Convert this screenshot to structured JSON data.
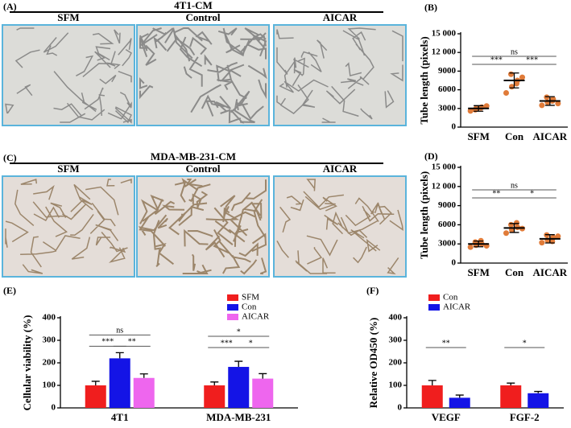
{
  "figure": {
    "panels": [
      {
        "label": "(A)",
        "title": "4T1-CM",
        "images": [
          "SFM",
          "Control",
          "AICAR"
        ]
      },
      {
        "label": "(C)",
        "title": "MDA-MB-231-CM",
        "images": [
          "SFM",
          "Control",
          "AICAR"
        ]
      }
    ]
  },
  "chart_data": [
    {
      "type": "dot",
      "panel": "(B)",
      "y_label": "Tube length (pixels)",
      "categories": [
        "SFM",
        "Con",
        "AICAR"
      ],
      "color": "#e07b39",
      "points": [
        [
          2600,
          3000,
          3200,
          2800,
          3100,
          3400
        ],
        [
          5500,
          6500,
          7500,
          8500,
          7000,
          8000
        ],
        [
          3500,
          4000,
          4500,
          4800,
          4200,
          3800
        ]
      ],
      "means": [
        3000,
        7500,
        4200
      ],
      "errors": [
        450,
        1200,
        700
      ],
      "ylim": [
        0,
        15000
      ],
      "yticks": [
        0,
        3000,
        6000,
        9000,
        {
          "value": 12000,
          "label": "12 000"
        },
        {
          "value": 15000,
          "label": "15 000"
        }
      ],
      "annotations": [
        {
          "label": "ns",
          "between": [
            "SFM",
            "AICAR"
          ]
        },
        {
          "label": "***",
          "between": [
            "SFM",
            "Con"
          ]
        },
        {
          "label": "***",
          "between": [
            "Con",
            "AICAR"
          ]
        }
      ]
    },
    {
      "type": "dot",
      "panel": "(D)",
      "y_label": "Tube length (pixels)",
      "categories": [
        "SFM",
        "Con",
        "AICAR"
      ],
      "color": "#e07b39",
      "points": [
        [
          2500,
          2800,
          3000,
          3300,
          3500,
          2700
        ],
        [
          4700,
          5200,
          5600,
          6000,
          6300,
          5400
        ],
        [
          3200,
          3600,
          4000,
          4400,
          3400,
          4200
        ]
      ],
      "means": [
        3000,
        5500,
        3800
      ],
      "errors": [
        450,
        700,
        650
      ],
      "ylim": [
        0,
        15000
      ],
      "yticks": [
        0,
        3000,
        6000,
        9000,
        {
          "value": 12000,
          "label": "12 000"
        },
        {
          "value": 15000,
          "label": "15 000"
        }
      ],
      "annotations": [
        {
          "label": "ns",
          "between": [
            "SFM",
            "AICAR"
          ]
        },
        {
          "label": "**",
          "between": [
            "SFM",
            "Con"
          ]
        },
        {
          "label": "*",
          "between": [
            "Con",
            "AICAR"
          ]
        }
      ]
    },
    {
      "type": "grouped_bar",
      "panel": "(E)",
      "y_label": "Cellular viability (%)",
      "categories": [
        "4T1",
        "MDA-MB-231"
      ],
      "series": [
        {
          "name": "SFM",
          "color": "#f01e1e",
          "values": [
            100,
            100
          ],
          "errors": [
            18,
            15
          ]
        },
        {
          "name": "Con",
          "color": "#1414e6",
          "values": [
            220,
            182
          ],
          "errors": [
            25,
            25
          ]
        },
        {
          "name": "AICAR",
          "color": "#ee66ee",
          "values": [
            133,
            130
          ],
          "errors": [
            18,
            22
          ]
        }
      ],
      "ylim": [
        0,
        400
      ],
      "yticks": [
        0,
        100,
        200,
        300,
        400
      ],
      "annotations": [
        {
          "label": "ns",
          "group": "4T1",
          "between": [
            "SFM",
            "AICAR"
          ]
        },
        {
          "label": "***",
          "group": "4T1",
          "between": [
            "SFM",
            "Con"
          ]
        },
        {
          "label": "**",
          "group": "4T1",
          "between": [
            "Con",
            "AICAR"
          ]
        },
        {
          "label": "*",
          "group": "MDA-MB-231",
          "between": [
            "SFM",
            "AICAR"
          ]
        },
        {
          "label": "***",
          "group": "MDA-MB-231",
          "between": [
            "SFM",
            "Con"
          ]
        },
        {
          "label": "*",
          "group": "MDA-MB-231",
          "between": [
            "Con",
            "AICAR"
          ]
        }
      ]
    },
    {
      "type": "grouped_bar",
      "panel": "(F)",
      "y_label": "Relative OD450 (%)",
      "categories": [
        "VEGF",
        "FGF-2"
      ],
      "series": [
        {
          "name": "Con",
          "color": "#f01e1e",
          "values": [
            100,
            100
          ],
          "errors": [
            22,
            10
          ]
        },
        {
          "name": "AICAR",
          "color": "#1414e6",
          "values": [
            45,
            65
          ],
          "errors": [
            12,
            8
          ]
        }
      ],
      "ylim": [
        0,
        400
      ],
      "yticks": [
        0,
        100,
        200,
        300,
        400
      ],
      "annotations": [
        {
          "label": "**",
          "group": "VEGF",
          "between": [
            "Con",
            "AICAR"
          ]
        },
        {
          "label": "*",
          "group": "FGF-2",
          "between": [
            "Con",
            "AICAR"
          ]
        }
      ]
    }
  ]
}
